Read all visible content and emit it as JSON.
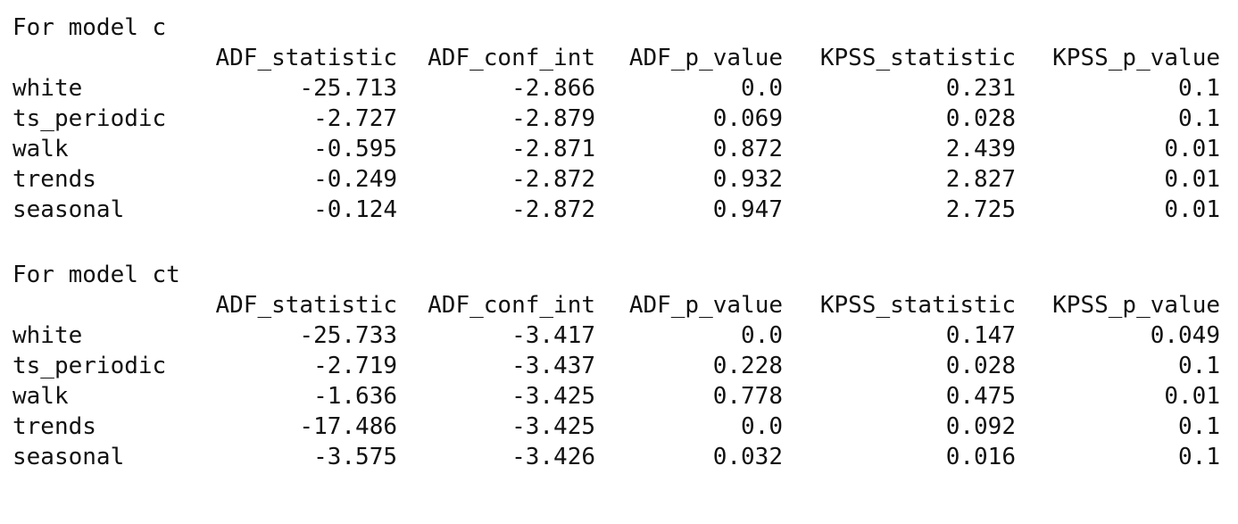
{
  "columns": [
    "ADF_statistic",
    "ADF_conf_int",
    "ADF_p_value",
    "KPSS_statistic",
    "KPSS_p_value"
  ],
  "tables": [
    {
      "heading": "For model c",
      "rows": [
        {
          "label": "white",
          "values": [
            "-25.713",
            "-2.866",
            "0.0",
            "0.231",
            "0.1"
          ]
        },
        {
          "label": "ts_periodic",
          "values": [
            "-2.727",
            "-2.879",
            "0.069",
            "0.028",
            "0.1"
          ]
        },
        {
          "label": "walk",
          "values": [
            "-0.595",
            "-2.871",
            "0.872",
            "2.439",
            "0.01"
          ]
        },
        {
          "label": "trends",
          "values": [
            "-0.249",
            "-2.872",
            "0.932",
            "2.827",
            "0.01"
          ]
        },
        {
          "label": "seasonal",
          "values": [
            "-0.124",
            "-2.872",
            "0.947",
            "2.725",
            "0.01"
          ]
        }
      ]
    },
    {
      "heading": "For model ct",
      "rows": [
        {
          "label": "white",
          "values": [
            "-25.733",
            "-3.417",
            "0.0",
            "0.147",
            "0.049"
          ]
        },
        {
          "label": "ts_periodic",
          "values": [
            "-2.719",
            "-3.437",
            "0.228",
            "0.028",
            "0.1"
          ]
        },
        {
          "label": "walk",
          "values": [
            "-1.636",
            "-3.425",
            "0.778",
            "0.475",
            "0.01"
          ]
        },
        {
          "label": "trends",
          "values": [
            "-17.486",
            "-3.425",
            "0.0",
            "0.092",
            "0.1"
          ]
        },
        {
          "label": "seasonal",
          "values": [
            "-3.575",
            "-3.426",
            "0.032",
            "0.016",
            "0.1"
          ]
        }
      ]
    }
  ]
}
